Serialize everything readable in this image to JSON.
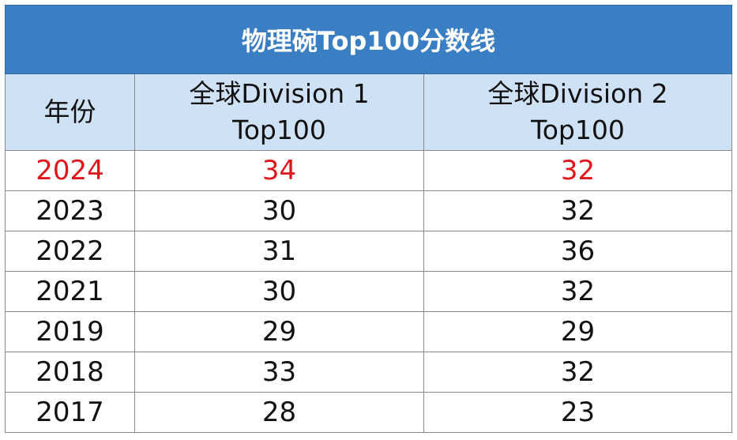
{
  "title": "物理碗Top100分数线",
  "headers": {
    "year": "年份",
    "div1_line1": "全球Division 1",
    "div1_line2": "Top100",
    "div2_line1": "全球Division 2",
    "div2_line2": "Top100"
  },
  "rows": [
    {
      "year": "2024",
      "div1": "34",
      "div2": "32",
      "highlight": true
    },
    {
      "year": "2023",
      "div1": "30",
      "div2": "32",
      "highlight": false
    },
    {
      "year": "2022",
      "div1": "31",
      "div2": "36",
      "highlight": false
    },
    {
      "year": "2021",
      "div1": "30",
      "div2": "32",
      "highlight": false
    },
    {
      "year": "2019",
      "div1": "29",
      "div2": "29",
      "highlight": false
    },
    {
      "year": "2018",
      "div1": "33",
      "div2": "32",
      "highlight": false
    },
    {
      "year": "2017",
      "div1": "28",
      "div2": "23",
      "highlight": false
    }
  ],
  "colors": {
    "title_bg": "#3a7fc3",
    "header_bg": "#cfe2f5",
    "highlight_text": "#e0161d"
  }
}
